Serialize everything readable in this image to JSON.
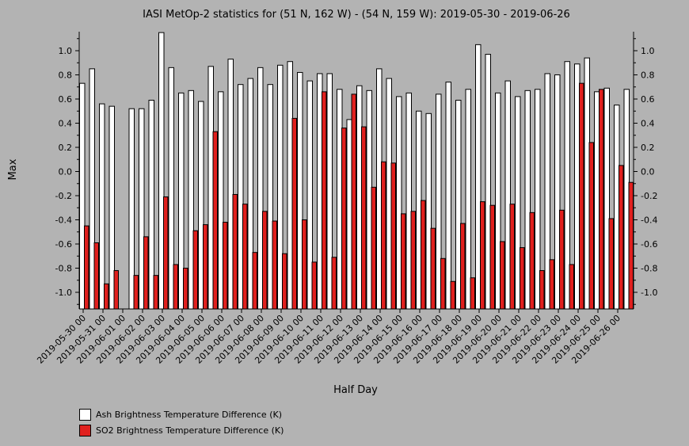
{
  "chart_data": {
    "type": "bar",
    "title": "IASI MetOp-2 statistics for (51 N, 162 W) - (54 N, 159 W): 2019-05-30 - 2019-06-26",
    "xlabel": "Half Day",
    "ylabel": "Max",
    "ylim": [
      -1.15,
      1.15
    ],
    "yticks": [
      "-1.0",
      "-0.8",
      "-0.6",
      "-0.4",
      "-0.2",
      "0.0",
      "0.2",
      "0.4",
      "0.6",
      "0.8",
      "1.0"
    ],
    "ytick_values": [
      -1.0,
      -0.8,
      -0.6,
      -0.4,
      -0.2,
      0.0,
      0.2,
      0.4,
      0.6,
      0.8,
      1.0
    ],
    "xtick_labels": [
      "2019-05-30 00",
      "2019-05-31 00",
      "2019-06-01 00",
      "2019-06-02 00",
      "2019-06-03 00",
      "2019-06-04 00",
      "2019-06-05 00",
      "2019-06-06 00",
      "2019-06-07 00",
      "2019-06-08 00",
      "2019-06-09 00",
      "2019-06-10 00",
      "2019-06-11 00",
      "2019-06-12 00",
      "2019-06-13 00",
      "2019-06-14 00",
      "2019-06-15 00",
      "2019-06-16 00",
      "2019-06-17 00",
      "2019-06-18 00",
      "2019-06-19 00",
      "2019-06-20 00",
      "2019-06-21 00",
      "2019-06-22 00",
      "2019-06-23 00",
      "2019-06-24 00",
      "2019-06-25 00",
      "2019-06-26 00"
    ],
    "grid": false,
    "legend_position": "bottom-left",
    "series": [
      {
        "name": "Ash Brightness Temperature Difference (K)",
        "color": "#ffffff",
        "values": [
          0.73,
          0.85,
          0.56,
          0.54,
          null,
          0.52,
          0.52,
          0.59,
          1.15,
          0.86,
          0.65,
          0.67,
          0.58,
          0.87,
          0.66,
          0.93,
          0.72,
          0.77,
          0.86,
          0.72,
          0.88,
          0.91,
          0.82,
          0.75,
          0.81,
          0.81,
          0.68,
          0.43,
          0.71,
          0.67,
          0.85,
          0.77,
          0.62,
          0.65,
          0.5,
          0.48,
          0.64,
          0.74,
          0.59,
          0.68,
          1.05,
          0.97,
          0.65,
          0.75,
          0.62,
          0.67,
          0.68,
          0.81,
          0.8,
          0.91,
          0.89,
          0.94,
          0.66,
          0.69,
          0.55,
          0.68
        ]
      },
      {
        "name": "SO2 Brightness Temperature Difference (K)",
        "color": "#e0201e",
        "values": [
          -0.45,
          -0.59,
          -0.93,
          -0.82,
          null,
          -0.86,
          -0.54,
          -0.86,
          -0.21,
          -0.77,
          -0.8,
          -0.49,
          -0.44,
          0.33,
          -0.42,
          -0.19,
          -0.27,
          -0.67,
          -0.33,
          -0.41,
          -0.68,
          0.44,
          -0.4,
          -0.75,
          0.66,
          -0.71,
          0.36,
          0.64,
          0.37,
          -0.13,
          0.08,
          0.07,
          -0.35,
          -0.33,
          -0.24,
          -0.47,
          -0.72,
          -0.91,
          -0.43,
          -0.88,
          -0.25,
          -0.28,
          -0.58,
          -0.27,
          -0.63,
          -0.34,
          -0.82,
          -0.73,
          -0.32,
          -0.77,
          0.73,
          0.24,
          0.68,
          -0.39,
          0.05,
          -0.09
        ]
      }
    ]
  }
}
